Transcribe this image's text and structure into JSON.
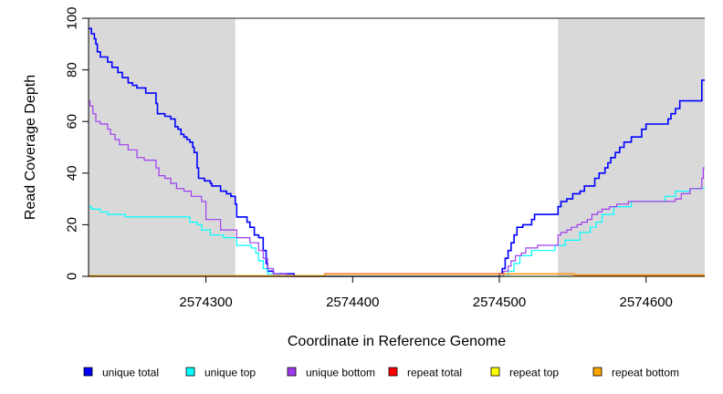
{
  "chart_data": {
    "type": "line",
    "xlabel": "Coordinate in Reference Genome",
    "ylabel": "Read Coverage Depth",
    "xlim": [
      2574220,
      2574640
    ],
    "ylim": [
      0,
      100
    ],
    "x_ticks": [
      2574300,
      2574400,
      2574500,
      2574600
    ],
    "y_ticks": [
      0,
      20,
      40,
      60,
      80,
      100
    ],
    "grid": false,
    "legend_position": "bottom",
    "shaded_regions": [
      {
        "x0": 2574220,
        "x1": 2574320,
        "color": "#d9d9d9"
      },
      {
        "x0": 2574540,
        "x1": 2574640,
        "color": "#d9d9d9"
      }
    ],
    "series": [
      {
        "name": "unique total",
        "color": "#0000ff",
        "step": true,
        "points": [
          [
            2574220,
            96
          ],
          [
            2574222,
            94
          ],
          [
            2574224,
            92
          ],
          [
            2574225,
            90
          ],
          [
            2574226,
            87
          ],
          [
            2574228,
            85
          ],
          [
            2574233,
            83
          ],
          [
            2574236,
            81
          ],
          [
            2574240,
            79
          ],
          [
            2574243,
            77
          ],
          [
            2574247,
            75
          ],
          [
            2574250,
            74
          ],
          [
            2574253,
            73
          ],
          [
            2574259,
            71
          ],
          [
            2574266,
            67
          ],
          [
            2574267,
            63
          ],
          [
            2574272,
            62
          ],
          [
            2574276,
            61
          ],
          [
            2574279,
            58
          ],
          [
            2574281,
            57
          ],
          [
            2574283,
            55
          ],
          [
            2574285,
            54
          ],
          [
            2574287,
            53
          ],
          [
            2574289,
            52
          ],
          [
            2574291,
            50
          ],
          [
            2574292,
            48
          ],
          [
            2574294,
            42
          ],
          [
            2574295,
            38
          ],
          [
            2574299,
            37
          ],
          [
            2574303,
            36
          ],
          [
            2574304,
            35
          ],
          [
            2574310,
            33
          ],
          [
            2574314,
            32
          ],
          [
            2574317,
            31
          ],
          [
            2574320,
            28
          ],
          [
            2574321,
            23
          ],
          [
            2574328,
            21
          ],
          [
            2574330,
            19
          ],
          [
            2574333,
            16
          ],
          [
            2574336,
            15
          ],
          [
            2574339,
            10
          ],
          [
            2574341,
            5
          ],
          [
            2574342,
            2
          ],
          [
            2574346,
            1
          ],
          [
            2574360,
            0
          ],
          [
            2574486,
            0
          ],
          [
            2574500,
            1
          ],
          [
            2574502,
            3
          ],
          [
            2574504,
            7
          ],
          [
            2574506,
            10
          ],
          [
            2574508,
            13
          ],
          [
            2574510,
            16
          ],
          [
            2574512,
            19
          ],
          [
            2574516,
            20
          ],
          [
            2574522,
            22
          ],
          [
            2574524,
            24
          ],
          [
            2574540,
            27
          ],
          [
            2574542,
            29
          ],
          [
            2574546,
            30
          ],
          [
            2574550,
            32
          ],
          [
            2574555,
            33
          ],
          [
            2574558,
            35
          ],
          [
            2574565,
            38
          ],
          [
            2574568,
            40
          ],
          [
            2574572,
            42
          ],
          [
            2574574,
            44
          ],
          [
            2574576,
            46
          ],
          [
            2574579,
            48
          ],
          [
            2574582,
            50
          ],
          [
            2574585,
            52
          ],
          [
            2574590,
            54
          ],
          [
            2574597,
            57
          ],
          [
            2574600,
            59
          ],
          [
            2574615,
            61
          ],
          [
            2574617,
            63
          ],
          [
            2574620,
            65
          ],
          [
            2574623,
            68
          ],
          [
            2574638,
            76
          ],
          [
            2574640,
            76
          ]
        ]
      },
      {
        "name": "unique top",
        "color": "#00ffff",
        "step": true,
        "points": [
          [
            2574220,
            27
          ],
          [
            2574222,
            26
          ],
          [
            2574228,
            25
          ],
          [
            2574233,
            24
          ],
          [
            2574245,
            23
          ],
          [
            2574289,
            21
          ],
          [
            2574294,
            20
          ],
          [
            2574297,
            18
          ],
          [
            2574303,
            16
          ],
          [
            2574312,
            15
          ],
          [
            2574321,
            12
          ],
          [
            2574331,
            11
          ],
          [
            2574334,
            9
          ],
          [
            2574336,
            6
          ],
          [
            2574339,
            3
          ],
          [
            2574342,
            1
          ],
          [
            2574350,
            0
          ],
          [
            2574504,
            0
          ],
          [
            2574506,
            2
          ],
          [
            2574510,
            5
          ],
          [
            2574514,
            8
          ],
          [
            2574522,
            10
          ],
          [
            2574538,
            12
          ],
          [
            2574545,
            14
          ],
          [
            2574555,
            17
          ],
          [
            2574562,
            19
          ],
          [
            2574566,
            21
          ],
          [
            2574570,
            24
          ],
          [
            2574578,
            27
          ],
          [
            2574590,
            29
          ],
          [
            2574613,
            31
          ],
          [
            2574620,
            33
          ],
          [
            2574630,
            34
          ],
          [
            2574640,
            34
          ]
        ]
      },
      {
        "name": "unique bottom",
        "color": "#a03cf0",
        "step": true,
        "points": [
          [
            2574220,
            68
          ],
          [
            2574221,
            66
          ],
          [
            2574223,
            63
          ],
          [
            2574225,
            60
          ],
          [
            2574228,
            59
          ],
          [
            2574233,
            57
          ],
          [
            2574235,
            55
          ],
          [
            2574238,
            53
          ],
          [
            2574241,
            51
          ],
          [
            2574247,
            49
          ],
          [
            2574253,
            46
          ],
          [
            2574258,
            45
          ],
          [
            2574266,
            42
          ],
          [
            2574268,
            39
          ],
          [
            2574272,
            38
          ],
          [
            2574276,
            36
          ],
          [
            2574280,
            34
          ],
          [
            2574285,
            33
          ],
          [
            2574290,
            31
          ],
          [
            2574297,
            29
          ],
          [
            2574300,
            22
          ],
          [
            2574310,
            18
          ],
          [
            2574321,
            15
          ],
          [
            2574330,
            13
          ],
          [
            2574336,
            10
          ],
          [
            2574339,
            7
          ],
          [
            2574342,
            3
          ],
          [
            2574346,
            1
          ],
          [
            2574355,
            0
          ],
          [
            2574500,
            0
          ],
          [
            2574503,
            2
          ],
          [
            2574506,
            4
          ],
          [
            2574508,
            6
          ],
          [
            2574511,
            8
          ],
          [
            2574515,
            9
          ],
          [
            2574518,
            11
          ],
          [
            2574526,
            12
          ],
          [
            2574540,
            16
          ],
          [
            2574542,
            17
          ],
          [
            2574546,
            18
          ],
          [
            2574549,
            19
          ],
          [
            2574553,
            20
          ],
          [
            2574556,
            21
          ],
          [
            2574560,
            22
          ],
          [
            2574563,
            24
          ],
          [
            2574567,
            25
          ],
          [
            2574570,
            26
          ],
          [
            2574575,
            27
          ],
          [
            2574580,
            28
          ],
          [
            2574588,
            29
          ],
          [
            2574620,
            30
          ],
          [
            2574624,
            32
          ],
          [
            2574630,
            34
          ],
          [
            2574638,
            38
          ],
          [
            2574639,
            42
          ],
          [
            2574640,
            42
          ]
        ]
      },
      {
        "name": "repeat total",
        "color": "#ff0000",
        "step": true,
        "points": [
          [
            2574220,
            0
          ],
          [
            2574380,
            0
          ],
          [
            2574381,
            1
          ],
          [
            2574500,
            1
          ],
          [
            2574540,
            1
          ],
          [
            2574551,
            0.5
          ],
          [
            2574640,
            0.5
          ]
        ]
      },
      {
        "name": "repeat top",
        "color": "#ffff00",
        "step": true,
        "points": [
          [
            2574220,
            0
          ],
          [
            2574640,
            0
          ]
        ]
      },
      {
        "name": "repeat bottom",
        "color": "#ffa500",
        "step": true,
        "points": [
          [
            2574220,
            0.3
          ],
          [
            2574380,
            0.3
          ],
          [
            2574381,
            0.8
          ],
          [
            2574500,
            0.8
          ],
          [
            2574503,
            1
          ],
          [
            2574540,
            1
          ],
          [
            2574551,
            0.6
          ],
          [
            2574640,
            0.6
          ]
        ]
      }
    ]
  }
}
